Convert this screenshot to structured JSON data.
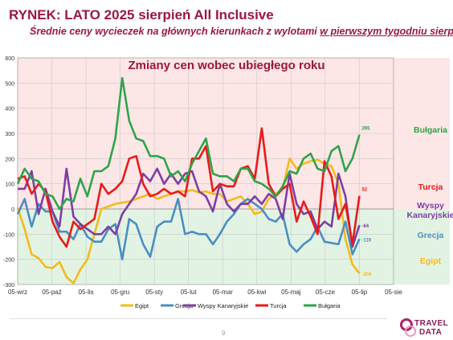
{
  "header": {
    "title": "RYNEK: LATO 2025 sierpień All Inclusive",
    "subtitle_pre": "Średnie ceny wycieczek na głównych kierunkach z wylotami ",
    "subtitle_underlined": "w pierwszym tygodniu sierpnia"
  },
  "page_number": "9",
  "logo": {
    "line1": "TRAVEL",
    "line2": "DATA"
  },
  "colors": {
    "positive_band": "#fde6e6",
    "negative_band": "#e3f3e3",
    "Egipt": "#f2bb1c",
    "Grecja": "#4a8ec1",
    "Wyspy Kanaryjskie": "#7b3fa4",
    "Turcja": "#e81a1a",
    "Bułgaria": "#2ea44a"
  },
  "chart_data": {
    "type": "line",
    "title": "Zmiany cen wobec ubiegłego roku",
    "xlabel": "",
    "ylabel": "",
    "ylim": [
      -300,
      600
    ],
    "yticks": [
      -300,
      -200,
      -100,
      0,
      100,
      200,
      300,
      400,
      500,
      600
    ],
    "x_tick_labels": [
      "05-wrz",
      "05-paź",
      "05-lis",
      "05-gru",
      "05-sty",
      "05-lut",
      "05-mar",
      "05-kwi",
      "05-maj",
      "05-cze",
      "05-lip",
      "05-sie"
    ],
    "grid": true,
    "legend": "bottom",
    "series": [
      {
        "name": "Egipt",
        "values": [
          5,
          -80,
          -180,
          -195,
          -230,
          -235,
          -210,
          -270,
          -295,
          -240,
          -200,
          -100,
          0,
          10,
          20,
          25,
          30,
          40,
          50,
          60,
          40,
          50,
          60,
          70,
          70,
          75,
          65,
          70,
          60,
          60,
          30,
          40,
          50,
          20,
          -20,
          -10,
          40,
          60,
          80,
          200,
          160,
          180,
          190,
          195,
          180,
          170,
          100,
          -120,
          -220,
          -256
        ],
        "end_label": "-256"
      },
      {
        "name": "Grecja",
        "values": [
          -20,
          40,
          -70,
          20,
          -10,
          -10,
          -90,
          -90,
          -120,
          -60,
          -110,
          -130,
          -130,
          -80,
          -60,
          -200,
          -40,
          -60,
          -140,
          -190,
          -70,
          -50,
          -50,
          40,
          -100,
          -90,
          -100,
          -100,
          -140,
          -100,
          -50,
          -20,
          20,
          40,
          20,
          0,
          -40,
          -50,
          -20,
          -140,
          -170,
          -140,
          -120,
          -70,
          -130,
          -135,
          -140,
          -50,
          -180,
          -119
        ],
        "end_label": "-119"
      },
      {
        "name": "Wyspy Kanaryjskie",
        "values": [
          80,
          80,
          150,
          -20,
          80,
          -10,
          -70,
          160,
          -30,
          -60,
          -80,
          -100,
          -100,
          -70,
          -100,
          -20,
          20,
          60,
          140,
          110,
          160,
          100,
          140,
          100,
          140,
          150,
          70,
          50,
          -10,
          100,
          20,
          -10,
          20,
          20,
          50,
          20,
          60,
          40,
          -40,
          140,
          20,
          -20,
          -10,
          -80,
          -50,
          -70,
          140,
          50,
          -150,
          -64
        ],
        "end_label": "-64"
      },
      {
        "name": "Turcja",
        "values": [
          120,
          130,
          60,
          100,
          70,
          -50,
          -110,
          -150,
          -50,
          -80,
          -60,
          -40,
          100,
          60,
          80,
          110,
          200,
          210,
          100,
          50,
          60,
          80,
          60,
          70,
          50,
          200,
          200,
          250,
          70,
          100,
          90,
          90,
          160,
          170,
          120,
          320,
          100,
          50,
          80,
          100,
          -50,
          30,
          -30,
          -100,
          190,
          130,
          -40,
          20,
          -140,
          52
        ],
        "end_label": "52"
      },
      {
        "name": "Bułgaria",
        "values": [
          100,
          160,
          120,
          110,
          60,
          50,
          0,
          40,
          30,
          120,
          50,
          150,
          150,
          170,
          280,
          520,
          350,
          280,
          270,
          210,
          210,
          200,
          130,
          150,
          110,
          180,
          230,
          280,
          140,
          130,
          130,
          110,
          160,
          160,
          110,
          100,
          80,
          50,
          90,
          150,
          140,
          200,
          220,
          160,
          150,
          230,
          250,
          150,
          200,
          295
        ],
        "end_label": "295"
      }
    ],
    "right_labels": [
      {
        "series": "Bułgaria",
        "text": "Bułgaria"
      },
      {
        "series": "Turcja",
        "text": "Turcja"
      },
      {
        "series": "Wyspy Kanaryjskie",
        "text": "Wyspy\nKanaryjskie"
      },
      {
        "series": "Grecja",
        "text": "Grecja"
      },
      {
        "series": "Egipt",
        "text": "Egipt"
      }
    ]
  }
}
